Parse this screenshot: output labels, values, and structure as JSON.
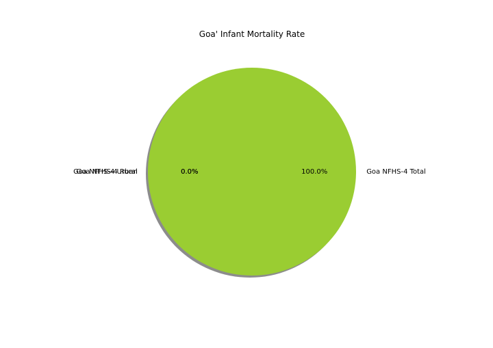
{
  "chart_data": {
    "type": "pie",
    "title": "Goa' Infant Mortality Rate",
    "slices": [
      {
        "label": "Goa NFHS-4 Total",
        "value": 100.0,
        "pct_label": "100.0%",
        "color": "#9acd32"
      },
      {
        "label": "Goa NFHS-4 Urban",
        "value": 0.0,
        "pct_label": "0.0%",
        "color": "#9acd32"
      },
      {
        "label": "Goa NFHS-4 Rural",
        "value": 0.0,
        "pct_label": "0.0%",
        "color": "#9acd32"
      }
    ],
    "shadow": true,
    "start_angle_deg": 180,
    "legend": "none"
  }
}
